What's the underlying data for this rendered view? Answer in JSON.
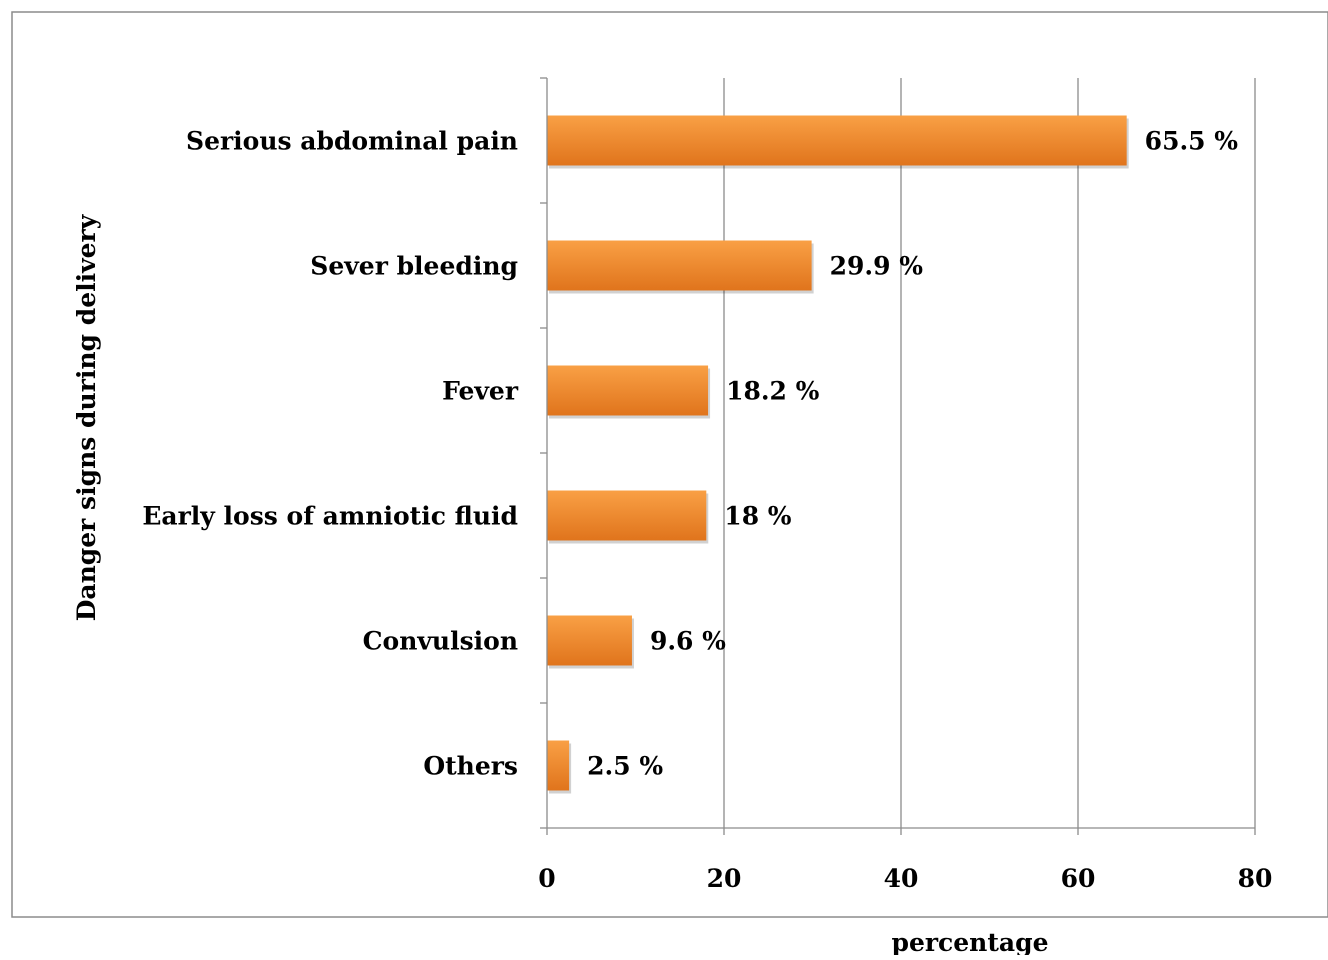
{
  "chart_data": {
    "type": "bar",
    "orientation": "horizontal",
    "categories": [
      "Serious abdominal pain",
      "Sever bleeding",
      "Fever",
      "Early loss of amniotic fluid",
      "Convulsion",
      "Others"
    ],
    "values": [
      65.5,
      29.9,
      18.2,
      18,
      9.6,
      2.5
    ],
    "value_labels": [
      "65.5 %",
      "29.9 %",
      "18.2 %",
      "18 %",
      "9.6 %",
      "2.5 %"
    ],
    "xlabel": "percentage",
    "ylabel": "Danger signs during delivery",
    "xlim": [
      0,
      80
    ],
    "xticks": [
      0,
      20,
      40,
      60,
      80
    ],
    "grid": "vertical",
    "legend": "none",
    "colors": {
      "bar_light": "#F9A045",
      "bar_dark": "#E0741C",
      "grid": "#8c8c8c",
      "border": "#8c8c8c"
    }
  }
}
